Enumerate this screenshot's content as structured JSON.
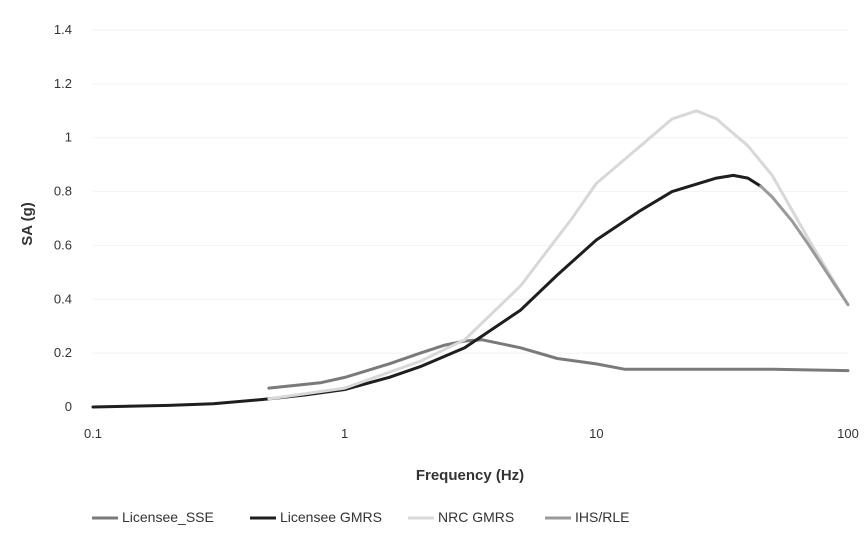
{
  "chart_data": {
    "type": "line",
    "title": "",
    "xlabel": "Frequency (Hz)",
    "ylabel": "SA (g)",
    "xscale": "log",
    "xlim": [
      0.1,
      100
    ],
    "ylim": [
      0,
      1.4
    ],
    "x_ticks": [
      "0.1",
      "1",
      "10",
      "100"
    ],
    "y_ticks": [
      "0",
      "0.2",
      "0.4",
      "0.6",
      "0.8",
      "1",
      "1.2",
      "1.4"
    ],
    "grid": "horizontal, faint",
    "legend_position": "bottom",
    "series": [
      {
        "name": "Licensee_SSE",
        "color": "#7a7a7a",
        "points": [
          [
            0.5,
            0.07
          ],
          [
            0.8,
            0.09
          ],
          [
            1.0,
            0.11
          ],
          [
            1.5,
            0.16
          ],
          [
            2.0,
            0.2
          ],
          [
            2.5,
            0.23
          ],
          [
            3.0,
            0.245
          ],
          [
            3.5,
            0.25
          ],
          [
            5.0,
            0.22
          ],
          [
            7.0,
            0.18
          ],
          [
            10.0,
            0.16
          ],
          [
            13.0,
            0.14
          ],
          [
            20.0,
            0.14
          ],
          [
            50.0,
            0.14
          ],
          [
            100.0,
            0.135
          ]
        ]
      },
      {
        "name": "Licensee GMRS",
        "color": "#1e1e1e",
        "points": [
          [
            0.1,
            0.0
          ],
          [
            0.2,
            0.006
          ],
          [
            0.3,
            0.012
          ],
          [
            0.5,
            0.03
          ],
          [
            0.7,
            0.045
          ],
          [
            1.0,
            0.065
          ],
          [
            1.5,
            0.11
          ],
          [
            2.0,
            0.15
          ],
          [
            3.0,
            0.22
          ],
          [
            5.0,
            0.36
          ],
          [
            7.0,
            0.49
          ],
          [
            10.0,
            0.62
          ],
          [
            15.0,
            0.73
          ],
          [
            20.0,
            0.8
          ],
          [
            30.0,
            0.85
          ],
          [
            35.0,
            0.86
          ],
          [
            40.0,
            0.85
          ],
          [
            45.0,
            0.82
          ]
        ]
      },
      {
        "name": "NRC GMRS",
        "color": "#d8d8d8",
        "points": [
          [
            0.5,
            0.03
          ],
          [
            1.0,
            0.07
          ],
          [
            2.0,
            0.17
          ],
          [
            3.0,
            0.25
          ],
          [
            5.0,
            0.45
          ],
          [
            8.0,
            0.7
          ],
          [
            10.0,
            0.83
          ],
          [
            15.0,
            0.97
          ],
          [
            20.0,
            1.07
          ],
          [
            25.0,
            1.1
          ],
          [
            30.0,
            1.07
          ],
          [
            40.0,
            0.97
          ],
          [
            50.0,
            0.86
          ],
          [
            70.0,
            0.62
          ],
          [
            100.0,
            0.38
          ]
        ]
      },
      {
        "name": "IHS/RLE",
        "color": "#9a9a9a",
        "points": [
          [
            45.0,
            0.82
          ],
          [
            50.0,
            0.78
          ],
          [
            60.0,
            0.69
          ],
          [
            70.0,
            0.6
          ],
          [
            85.0,
            0.48
          ],
          [
            100.0,
            0.38
          ]
        ]
      }
    ]
  }
}
